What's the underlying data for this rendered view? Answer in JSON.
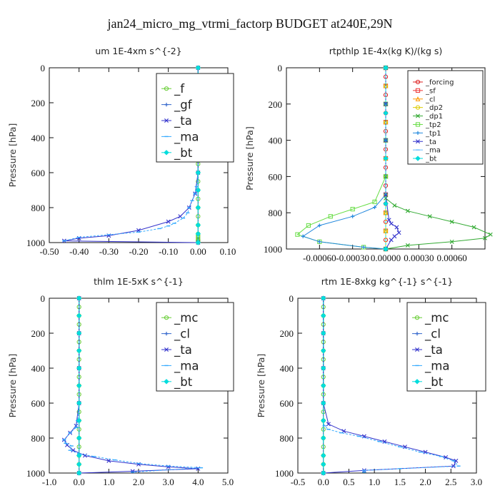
{
  "figure_title": "jan24_micro_mg_vtrmi_factorp  BUDGET at240E,29N",
  "chart_data": [
    {
      "type": "line",
      "title": "um   1E-4xm s^{-2}",
      "ylabel": "Pressure [hPa]",
      "xlim": [
        -0.5,
        0.1
      ],
      "ylim": [
        1000,
        0
      ],
      "xticks": [
        "-0.50",
        "-0.40",
        "-0.30",
        "-0.20",
        "-0.10",
        "0.00",
        "0.10"
      ],
      "yticks": [
        "0",
        "200",
        "400",
        "600",
        "800",
        "1000"
      ],
      "legend": "top-right",
      "series": [
        {
          "name": "_f",
          "color": "#66cc33",
          "marker": "circle",
          "x": [
            0,
            0,
            0,
            0,
            0,
            0,
            0,
            0,
            0,
            0,
            0,
            0,
            0,
            0,
            0,
            0,
            0,
            0,
            0,
            0,
            0,
            0,
            0,
            0,
            0,
            0,
            0
          ],
          "y": [
            0,
            50,
            100,
            150,
            200,
            250,
            300,
            350,
            400,
            450,
            500,
            550,
            600,
            650,
            700,
            750,
            800,
            850,
            900,
            950,
            960,
            970,
            980,
            985,
            990,
            995,
            1000
          ]
        },
        {
          "name": "_gf",
          "color": "#3366cc",
          "marker": "plus",
          "x": [
            0,
            0,
            0,
            0,
            0,
            0,
            0,
            0,
            0,
            0,
            0,
            0
          ],
          "y": [
            0,
            100,
            200,
            300,
            400,
            500,
            600,
            700,
            800,
            900,
            950,
            1000
          ]
        },
        {
          "name": "_ta",
          "color": "#3333cc",
          "marker": "cross",
          "x": [
            0,
            0,
            0,
            0,
            -0.01,
            -0.03,
            -0.06,
            -0.1,
            -0.2,
            -0.3,
            -0.4,
            -0.45,
            0
          ],
          "y": [
            0,
            200,
            400,
            600,
            720,
            800,
            850,
            880,
            930,
            960,
            975,
            990,
            1000
          ]
        },
        {
          "name": "_ma",
          "color": "#33aaff",
          "marker": "dash",
          "x": [
            0,
            -0.005,
            -0.01,
            -0.02,
            -0.03,
            -0.035,
            -0.05,
            -0.08,
            -0.1,
            -0.13,
            -0.2,
            -0.3,
            -0.4,
            -0.45
          ],
          "y": [
            600,
            680,
            720,
            760,
            800,
            830,
            860,
            890,
            905,
            920,
            940,
            955,
            970,
            990
          ]
        },
        {
          "name": "_bt",
          "color": "#00dddd",
          "marker": "diamond",
          "x": [
            0,
            0,
            0,
            0,
            0,
            0,
            0,
            0,
            0,
            0,
            0,
            0
          ],
          "y": [
            0,
            100,
            200,
            300,
            400,
            500,
            600,
            700,
            800,
            900,
            950,
            1000
          ]
        }
      ]
    },
    {
      "type": "line",
      "title": "rtpthlp   1E-4x(kg K)/(kg s)",
      "ylabel": "Pressure [hPa]",
      "xlim": [
        -0.0009,
        0.0009
      ],
      "ylim": [
        1000,
        0
      ],
      "xticks": [
        "-0.00060",
        "-0.00030",
        "0.00000",
        "0.00030",
        "0.00060"
      ],
      "yticks": [
        "0",
        "200",
        "400",
        "600",
        "800",
        "1000"
      ],
      "legend": "top-right",
      "series": [
        {
          "name": "_forcing",
          "color": "#dd2222",
          "marker": "circle",
          "x": [
            0,
            0,
            0,
            0,
            0,
            0,
            0,
            0,
            0,
            0,
            0,
            0,
            0,
            0,
            0,
            0,
            0,
            0,
            0,
            0,
            0
          ],
          "y": [
            0,
            50,
            100,
            150,
            200,
            250,
            300,
            350,
            400,
            450,
            500,
            550,
            600,
            650,
            700,
            750,
            800,
            850,
            900,
            950,
            1000
          ]
        },
        {
          "name": "_sf",
          "color": "#ee3333",
          "marker": "square",
          "x": [
            0,
            0,
            0,
            0,
            0,
            0,
            0,
            0,
            0,
            0,
            0
          ],
          "y": [
            0,
            100,
            200,
            300,
            400,
            500,
            600,
            700,
            800,
            900,
            1000
          ]
        },
        {
          "name": "_cl",
          "color": "#ff9900",
          "marker": "triangle",
          "x": [
            0,
            0,
            0,
            0,
            0,
            0,
            0,
            0,
            0,
            0,
            0
          ],
          "y": [
            0,
            100,
            200,
            300,
            400,
            500,
            600,
            700,
            800,
            900,
            1000
          ]
        },
        {
          "name": "_dp2",
          "color": "#ddcc00",
          "marker": "circle",
          "x": [
            0,
            0,
            0,
            0,
            0,
            0,
            0,
            0,
            0,
            0,
            0
          ],
          "y": [
            0,
            100,
            200,
            300,
            400,
            500,
            600,
            700,
            800,
            900,
            1000
          ]
        },
        {
          "name": "_dp1",
          "color": "#33aa33",
          "marker": "cross",
          "x": [
            0,
            0,
            0,
            0,
            0,
            8e-05,
            0.0002,
            0.0004,
            0.0006,
            0.0008,
            0.00095,
            0.0009,
            0.0006,
            0.0002,
            0
          ],
          "y": [
            0,
            200,
            400,
            600,
            720,
            760,
            790,
            820,
            850,
            880,
            920,
            940,
            960,
            980,
            1000
          ]
        },
        {
          "name": "_tp2",
          "color": "#66dd44",
          "marker": "square",
          "x": [
            0,
            0,
            0,
            0,
            -0.0001,
            -0.0003,
            -0.0005,
            -0.0007,
            -0.0008,
            -0.0006,
            -0.0002,
            0
          ],
          "y": [
            0,
            200,
            400,
            600,
            740,
            780,
            820,
            870,
            920,
            960,
            990,
            1000
          ]
        },
        {
          "name": "_tp1",
          "color": "#2288dd",
          "marker": "plus",
          "x": [
            0,
            0,
            0,
            0,
            -0.0001,
            -0.0003,
            -0.0006,
            -0.00075,
            -0.0006,
            -0.0002,
            0
          ],
          "y": [
            0,
            200,
            400,
            700,
            770,
            820,
            870,
            930,
            960,
            990,
            1000
          ]
        },
        {
          "name": "_ta",
          "color": "#3333cc",
          "marker": "cross",
          "x": [
            0,
            0,
            0,
            0,
            3e-05,
            5e-05,
            0.0001,
            0.00012,
            8e-05,
            5e-05,
            0
          ],
          "y": [
            0,
            200,
            400,
            700,
            840,
            860,
            880,
            910,
            930,
            950,
            1000
          ]
        },
        {
          "name": "_ma",
          "color": "#66bbff",
          "marker": "dash",
          "x": [
            0,
            0,
            0,
            0,
            0
          ],
          "y": [
            0,
            250,
            500,
            750,
            1000
          ]
        },
        {
          "name": "_bt",
          "color": "#00dddd",
          "marker": "diamond",
          "x": [
            0,
            0,
            0,
            0,
            0
          ],
          "y": [
            0,
            250,
            500,
            750,
            1000
          ]
        }
      ]
    },
    {
      "type": "line",
      "title": "thlm   1E-5xK s^{-1}",
      "ylabel": "Pressure [hPa]",
      "xlim": [
        -1.0,
        5.0
      ],
      "ylim": [
        1000,
        0
      ],
      "xticks": [
        "-1.0",
        "0.0",
        "1.0",
        "2.0",
        "3.0",
        "4.0",
        "5.0"
      ],
      "yticks": [
        "0",
        "200",
        "400",
        "600",
        "800",
        "1000"
      ],
      "legend": "top-right",
      "series": [
        {
          "name": "_mc",
          "color": "#66cc33",
          "marker": "circle",
          "x": [
            0,
            0,
            0,
            0,
            0,
            0,
            0,
            0,
            0,
            0,
            0,
            0,
            0,
            0,
            0,
            0,
            0,
            0,
            0,
            0,
            0
          ],
          "y": [
            0,
            50,
            100,
            150,
            200,
            250,
            300,
            350,
            400,
            450,
            500,
            550,
            600,
            650,
            700,
            750,
            800,
            850,
            900,
            950,
            1000
          ]
        },
        {
          "name": "_cl",
          "color": "#3366cc",
          "marker": "plus",
          "x": [
            0,
            0,
            0,
            0,
            0,
            0,
            0,
            0,
            0,
            0,
            0,
            0
          ],
          "y": [
            0,
            100,
            200,
            300,
            400,
            500,
            600,
            700,
            800,
            900,
            950,
            1000
          ]
        },
        {
          "name": "_ta",
          "color": "#3333cc",
          "marker": "cross",
          "x": [
            0,
            0,
            0,
            0,
            -0.1,
            -0.3,
            -0.5,
            -0.4,
            -0.2,
            0.2,
            1.0,
            2.0,
            3.0,
            4.0,
            1.8,
            0
          ],
          "y": [
            0,
            200,
            400,
            600,
            730,
            770,
            810,
            840,
            870,
            900,
            930,
            950,
            965,
            975,
            990,
            1000
          ]
        },
        {
          "name": "_ma",
          "color": "#33aaff",
          "marker": "dash",
          "x": [
            0,
            -0.05,
            -0.1,
            -0.3,
            -0.5,
            -0.45,
            -0.25,
            -0.3,
            0,
            0.5,
            1.2,
            2.0,
            3.0,
            4.1,
            1.8
          ],
          "y": [
            600,
            700,
            740,
            770,
            810,
            830,
            845,
            870,
            890,
            905,
            925,
            945,
            960,
            970,
            995
          ]
        },
        {
          "name": "_bt",
          "color": "#00dddd",
          "marker": "diamond",
          "x": [
            0,
            0,
            0,
            0,
            0,
            0,
            0,
            0,
            0,
            0,
            0,
            0
          ],
          "y": [
            0,
            100,
            200,
            300,
            400,
            500,
            600,
            700,
            800,
            900,
            950,
            1000
          ]
        }
      ]
    },
    {
      "type": "line",
      "title": "rtm   1E-8xkg kg^{-1} s^{-1}",
      "ylabel": "Pressure [hPa]",
      "xlim": [
        -0.5,
        3.0
      ],
      "ylim": [
        1000,
        0
      ],
      "xticks": [
        "-0.5",
        "0.0",
        "0.5",
        "1.0",
        "1.5",
        "2.0",
        "2.5",
        "3.0"
      ],
      "yticks": [
        "0",
        "200",
        "400",
        "600",
        "800",
        "1000"
      ],
      "legend": "top-right",
      "series": [
        {
          "name": "_mc",
          "color": "#66cc33",
          "marker": "circle",
          "x": [
            0,
            0,
            0,
            0,
            0,
            0,
            0,
            0,
            0,
            0,
            0,
            0,
            0,
            0,
            0,
            0,
            0,
            0,
            0,
            0,
            0
          ],
          "y": [
            0,
            50,
            100,
            150,
            200,
            250,
            300,
            350,
            400,
            450,
            500,
            550,
            600,
            650,
            700,
            750,
            800,
            850,
            900,
            950,
            1000
          ]
        },
        {
          "name": "_cl",
          "color": "#3366cc",
          "marker": "plus",
          "x": [
            0,
            0,
            0,
            0,
            0,
            0,
            0,
            0,
            0,
            0,
            0,
            0
          ],
          "y": [
            0,
            100,
            200,
            300,
            400,
            500,
            600,
            700,
            800,
            900,
            950,
            1000
          ]
        },
        {
          "name": "_ta",
          "color": "#3333cc",
          "marker": "cross",
          "x": [
            0,
            0,
            0,
            0,
            0.1,
            0.4,
            0.8,
            1.2,
            1.6,
            2.0,
            2.4,
            2.6,
            2.55,
            0.8,
            0
          ],
          "y": [
            0,
            200,
            400,
            600,
            720,
            760,
            790,
            820,
            850,
            880,
            910,
            930,
            960,
            985,
            1000
          ]
        },
        {
          "name": "_ma",
          "color": "#33aaff",
          "marker": "dash",
          "x": [
            0,
            0.02,
            0.1,
            0.35,
            0.7,
            1.1,
            1.5,
            1.9,
            2.3,
            2.55,
            2.65,
            1.5,
            0.8,
            0.8
          ],
          "y": [
            700,
            730,
            750,
            770,
            790,
            820,
            850,
            880,
            905,
            930,
            960,
            975,
            985,
            995
          ]
        },
        {
          "name": "_bt",
          "color": "#00dddd",
          "marker": "diamond",
          "x": [
            0,
            0,
            0,
            0,
            0,
            0,
            0,
            0,
            0,
            0,
            0,
            0
          ],
          "y": [
            0,
            100,
            200,
            300,
            400,
            500,
            600,
            700,
            800,
            900,
            950,
            1000
          ]
        }
      ]
    }
  ]
}
